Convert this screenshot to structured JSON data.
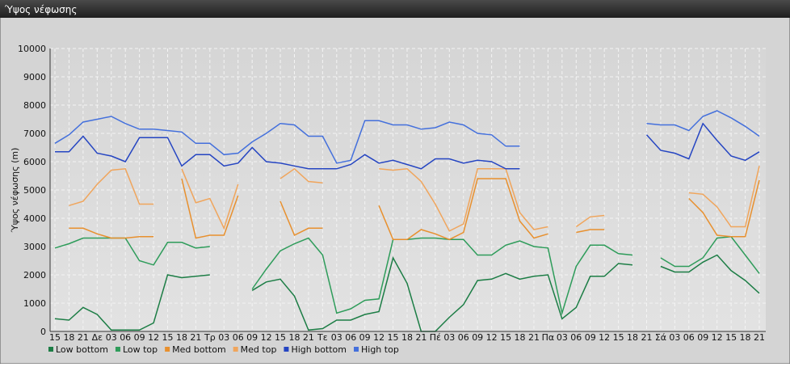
{
  "chart_data": {
    "type": "line",
    "title": "Ύψος νέφωσης",
    "y_label": "Ύψος νέφωσης (m)",
    "categories": [
      "15",
      "18",
      "21",
      "Δε",
      "03",
      "06",
      "09",
      "12",
      "15",
      "18",
      "21",
      "Τρ",
      "03",
      "06",
      "09",
      "12",
      "15",
      "18",
      "21",
      "Τε",
      "03",
      "06",
      "09",
      "12",
      "15",
      "18",
      "21",
      "Πέ",
      "03",
      "06",
      "09",
      "12",
      "15",
      "18",
      "21",
      "Πα",
      "03",
      "06",
      "09",
      "12",
      "15",
      "18",
      "21",
      "Σά",
      "03",
      "06",
      "09",
      "12",
      "15",
      "18",
      "21"
    ],
    "ylim": [
      0,
      10000
    ],
    "yticks": [
      0,
      1000,
      2000,
      3000,
      4000,
      5000,
      6000,
      7000,
      8000,
      9000,
      10000
    ],
    "grid": true,
    "legend": "bottom",
    "series": [
      {
        "name": "Low bottom",
        "color": "#1c7d45",
        "values": [
          450,
          400,
          850,
          600,
          50,
          50,
          50,
          300,
          2000,
          1900,
          1950,
          2000,
          null,
          null,
          1450,
          1750,
          1850,
          1250,
          50,
          100,
          400,
          400,
          600,
          700,
          2600,
          1700,
          0,
          0,
          500,
          950,
          1800,
          1850,
          2050,
          1850,
          1950,
          2000,
          450,
          850,
          1950,
          1950,
          2400,
          2350,
          null,
          2300,
          2100,
          2100,
          2450,
          2700,
          2150,
          1800,
          1350
        ]
      },
      {
        "name": "Low top",
        "color": "#2e9c5a",
        "values": [
          2950,
          3100,
          3300,
          3300,
          3300,
          3300,
          2500,
          2350,
          3150,
          3150,
          2950,
          3000,
          null,
          null,
          1500,
          2200,
          2850,
          3100,
          3300,
          2700,
          650,
          800,
          1100,
          1150,
          3250,
          3250,
          3300,
          3300,
          3250,
          3250,
          2700,
          2700,
          3050,
          3200,
          3000,
          2950,
          650,
          2300,
          3050,
          3050,
          2750,
          2700,
          null,
          2600,
          2300,
          2300,
          2600,
          3300,
          3350,
          2700,
          2050
        ]
      },
      {
        "name": "Med bottom",
        "color": "#e8902e",
        "values": [
          null,
          3650,
          3650,
          3450,
          3300,
          3300,
          3350,
          3350,
          null,
          5400,
          3300,
          3400,
          3400,
          4800,
          null,
          null,
          4600,
          3400,
          3650,
          3650,
          null,
          null,
          null,
          4450,
          3250,
          3250,
          3600,
          3450,
          3250,
          3500,
          5400,
          5400,
          5400,
          3900,
          3300,
          3450,
          null,
          3500,
          3600,
          3600,
          null,
          null,
          null,
          null,
          null,
          4700,
          4200,
          3400,
          3350,
          3350,
          5350
        ]
      },
      {
        "name": "Med top",
        "color": "#f0a55c",
        "values": [
          null,
          4450,
          4600,
          5200,
          5700,
          5750,
          4500,
          4500,
          null,
          5750,
          4550,
          4700,
          3650,
          5200,
          null,
          null,
          5400,
          5750,
          5300,
          5250,
          null,
          null,
          null,
          5750,
          5700,
          5750,
          5300,
          4500,
          3550,
          3800,
          5750,
          5750,
          5750,
          4200,
          3600,
          3700,
          null,
          3700,
          4050,
          4100,
          null,
          null,
          null,
          null,
          null,
          4900,
          4850,
          4400,
          3700,
          3700,
          5850
        ]
      },
      {
        "name": "High bottom",
        "color": "#2545c2",
        "values": [
          6350,
          6350,
          6900,
          6300,
          6200,
          6000,
          6850,
          6850,
          6850,
          5850,
          6250,
          6250,
          5850,
          5950,
          6500,
          6000,
          5950,
          5850,
          5750,
          5750,
          5750,
          5900,
          6250,
          5950,
          6050,
          5900,
          5750,
          6100,
          6100,
          5950,
          6050,
          6000,
          5750,
          5750,
          null,
          null,
          null,
          null,
          null,
          null,
          null,
          null,
          6950,
          6400,
          6300,
          6100,
          7350,
          6750,
          6200,
          6050,
          6350
        ]
      },
      {
        "name": "High top",
        "color": "#4470dc",
        "values": [
          6650,
          6950,
          7400,
          7500,
          7600,
          7350,
          7150,
          7150,
          7100,
          7050,
          6650,
          6650,
          6250,
          6300,
          6700,
          7000,
          7350,
          7300,
          6900,
          6900,
          5950,
          6050,
          7450,
          7450,
          7300,
          7300,
          7150,
          7200,
          7400,
          7300,
          7000,
          6950,
          6550,
          6550,
          null,
          null,
          null,
          null,
          null,
          null,
          null,
          null,
          7350,
          7300,
          7300,
          7100,
          7600,
          7800,
          7550,
          7250,
          6900
        ]
      }
    ]
  }
}
